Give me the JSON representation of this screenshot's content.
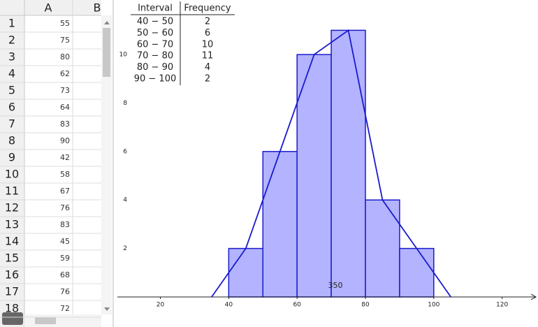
{
  "spreadsheet": {
    "columns": [
      "A",
      "B"
    ],
    "row_numbers": [
      1,
      2,
      3,
      4,
      5,
      6,
      7,
      8,
      9,
      10,
      11,
      12,
      13,
      14,
      15,
      16,
      17,
      18
    ],
    "column_a": [
      55,
      75,
      80,
      62,
      73,
      64,
      83,
      90,
      42,
      58,
      67,
      76,
      83,
      45,
      59,
      68,
      76,
      72
    ]
  },
  "frequency_table": {
    "headers": [
      "Interval",
      "Frequency"
    ],
    "intervals": [
      "40 − 50",
      "50 − 60",
      "60 − 70",
      "70 − 80",
      "80 − 90",
      "90 − 100"
    ]
  },
  "chart_data": {
    "type": "histogram",
    "bins": [
      40,
      50,
      60,
      70,
      80,
      90,
      100
    ],
    "values": [
      2,
      6,
      10,
      11,
      4,
      2
    ],
    "color": "#b3b3ff",
    "edge_color": "#1a1acc",
    "polygon": {
      "x": [
        35,
        45,
        55,
        65,
        75,
        85,
        95,
        105
      ],
      "values": [
        0,
        2,
        6,
        10,
        11,
        4,
        2,
        0
      ],
      "color": "#1a1acc"
    },
    "annotation": "350",
    "xlim": [
      6.4,
      130.5
    ],
    "ylim": [
      -1.24,
      12.25
    ],
    "xticks": [
      20,
      40,
      60,
      80,
      100,
      120
    ],
    "yticks": [
      2,
      4,
      6,
      8,
      10
    ],
    "grid": false
  }
}
